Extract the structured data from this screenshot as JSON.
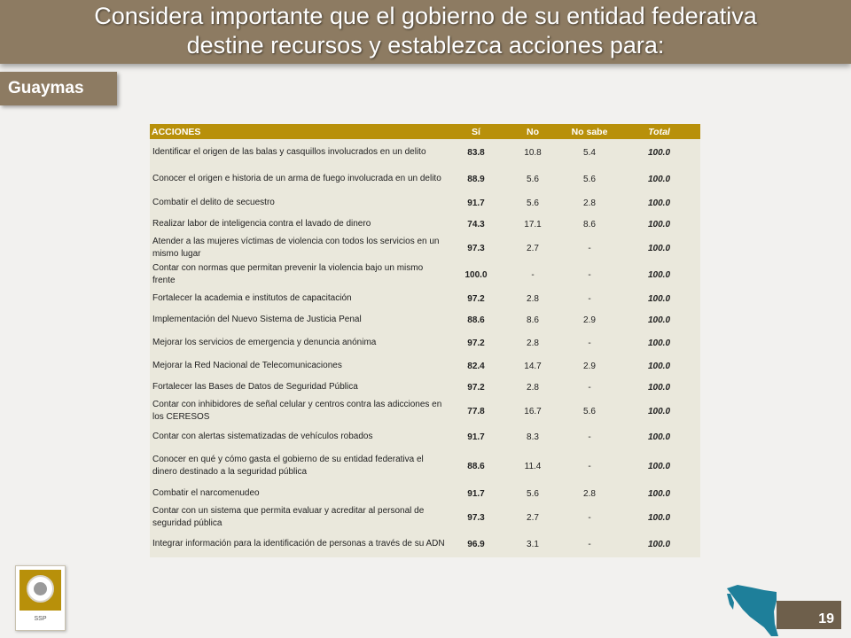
{
  "header": {
    "line1": "Considera importante que el gobierno de su entidad federativa",
    "line2": "destine recursos y establezca acciones para:"
  },
  "region": "Guaymas",
  "table": {
    "columns": [
      "ACCIONES",
      "Sí",
      "No",
      "No sabe",
      "Total"
    ],
    "rows": [
      {
        "accion": "Identificar el origen de las balas y casquillos involucrados en un delito",
        "si": "83.8",
        "no": "10.8",
        "no_sabe": "5.4",
        "total": "100.0"
      },
      {
        "accion": "Conocer el origen e historia de un arma de fuego involucrada en un delito",
        "si": "88.9",
        "no": "5.6",
        "no_sabe": "5.6",
        "total": "100.0"
      },
      {
        "accion": "Combatir el delito de secuestro",
        "si": "91.7",
        "no": "5.6",
        "no_sabe": "2.8",
        "total": "100.0"
      },
      {
        "accion": "Realizar labor de inteligencia contra el lavado de dinero",
        "si": "74.3",
        "no": "17.1",
        "no_sabe": "8.6",
        "total": "100.0"
      },
      {
        "accion": "Atender a las mujeres víctimas de violencia con todos los servicios en un mismo lugar",
        "si": "97.3",
        "no": "2.7",
        "no_sabe": "-",
        "total": "100.0"
      },
      {
        "accion": "Contar con normas que permitan prevenir la violencia bajo un mismo frente",
        "si": "100.0",
        "no": "-",
        "no_sabe": "-",
        "total": "100.0"
      },
      {
        "accion": "Fortalecer la academia e institutos de capacitación",
        "si": "97.2",
        "no": "2.8",
        "no_sabe": "-",
        "total": "100.0"
      },
      {
        "accion": "Implementación del Nuevo Sistema de Justicia Penal",
        "si": "88.6",
        "no": "8.6",
        "no_sabe": "2.9",
        "total": "100.0"
      },
      {
        "accion": "Mejorar los servicios de emergencia y denuncia anónima",
        "si": "97.2",
        "no": "2.8",
        "no_sabe": "-",
        "total": "100.0"
      },
      {
        "accion": "Mejorar la Red Nacional de Telecomunicaciones",
        "si": "82.4",
        "no": "14.7",
        "no_sabe": "2.9",
        "total": "100.0"
      },
      {
        "accion": "Fortalecer las Bases de Datos de Seguridad Pública",
        "si": "97.2",
        "no": "2.8",
        "no_sabe": "-",
        "total": "100.0"
      },
      {
        "accion": "Contar con inhibidores de señal celular y centros contra las adicciones en los CERESOS",
        "si": "77.8",
        "no": "16.7",
        "no_sabe": "5.6",
        "total": "100.0"
      },
      {
        "accion": "Contar con alertas sistematizadas de vehículos robados",
        "si": "91.7",
        "no": "8.3",
        "no_sabe": "-",
        "total": "100.0"
      },
      {
        "accion": "Conocer en qué y cómo gasta el gobierno de su entidad federativa el dinero destinado a la seguridad pública",
        "si": "88.6",
        "no": "11.4",
        "no_sabe": "-",
        "total": "100.0"
      },
      {
        "accion": "Combatir el narcomenudeo",
        "si": "91.7",
        "no": "5.6",
        "no_sabe": "2.8",
        "total": "100.0"
      },
      {
        "accion": "Contar con un sistema que permita evaluar y acreditar al personal de seguridad pública",
        "si": "97.3",
        "no": "2.7",
        "no_sabe": "-",
        "total": "100.0"
      },
      {
        "accion": "Integrar información para la identificación de personas a través de su ADN",
        "si": "96.9",
        "no": "3.1",
        "no_sabe": "-",
        "total": "100.0"
      }
    ]
  },
  "logo": {
    "text": "SSP",
    "icon": "ssp-seal-logo"
  },
  "map_icon": "sonora-state-map-icon",
  "page_number": "19",
  "colors": {
    "header_bg": "#8d7b62",
    "table_header_bg": "#b8900a",
    "row_bg": "#eae8dc",
    "map_fill": "#1e7f9a",
    "page_box_bg": "#6e5f4b"
  }
}
